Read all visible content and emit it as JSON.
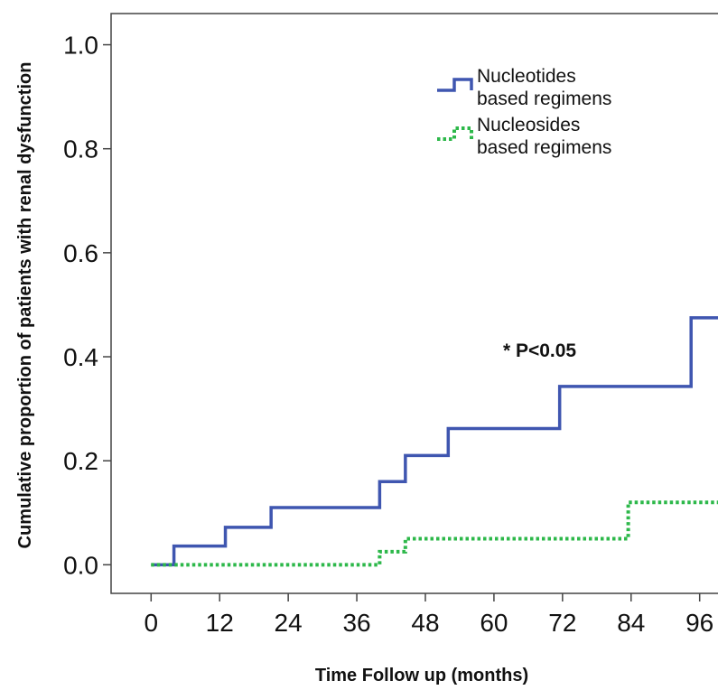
{
  "chart_data": {
    "type": "line",
    "step": true,
    "title": "",
    "xlabel": "Time Follow up (months)",
    "ylabel": "Cumulative proportion of patients with renal dysfunction",
    "xlim": [
      -7,
      100
    ],
    "ylim": [
      -0.055,
      1.06
    ],
    "xticks": [
      0,
      12,
      24,
      36,
      48,
      60,
      72,
      84,
      96
    ],
    "yticks": [
      0.0,
      0.2,
      0.4,
      0.6,
      0.8,
      1.0
    ],
    "xtick_labels": [
      "0",
      "12",
      "24",
      "36",
      "48",
      "60",
      "72",
      "84",
      "96"
    ],
    "ytick_labels": [
      "0.0",
      "0.2",
      "0.4",
      "0.6",
      "0.8",
      "1.0"
    ],
    "series": [
      {
        "name": "Nucleotides based regimens",
        "color": "#3f56b0",
        "line_style": "solid",
        "x": [
          0,
          4,
          13,
          21,
          40,
          44.5,
          52,
          71.5,
          94.5,
          100
        ],
        "y": [
          0,
          0.036,
          0.072,
          0.11,
          0.16,
          0.21,
          0.262,
          0.343,
          0.475,
          0.475
        ]
      },
      {
        "name": "Nucleosides based regimens",
        "color": "#2db84a",
        "line_style": "dotted",
        "x": [
          0,
          40,
          44.5,
          83.5,
          100
        ],
        "y": [
          0,
          0.025,
          0.05,
          0.12,
          0.12
        ]
      }
    ],
    "legend": {
      "position": "top-right",
      "entries": [
        {
          "line1": "Nucleotides",
          "line2": "based regimens"
        },
        {
          "line1": "Nucleosides",
          "line2": "based regimens"
        }
      ]
    },
    "annotations": [
      {
        "text": "* P<0.05",
        "x": 68,
        "y": 0.4
      }
    ],
    "grid": false
  }
}
